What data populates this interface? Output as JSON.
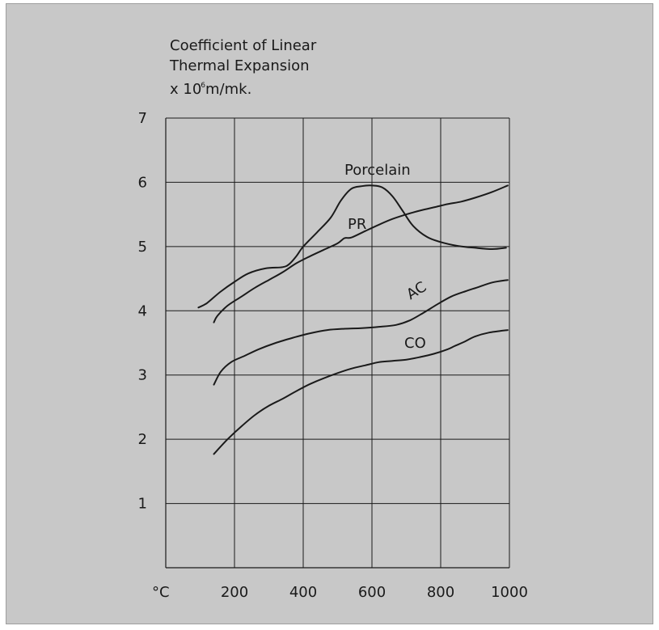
{
  "chart_data": {
    "type": "line",
    "title": "",
    "ylabel_lines": [
      "Coefficient of Linear",
      "Thermal Expansion"
    ],
    "ylabel_unit_prefix": "x 10",
    "ylabel_unit_exp": "6",
    "ylabel_unit_suffix": "m/mk.",
    "xlabel": "°C",
    "xlim": [
      0,
      1000
    ],
    "ylim": [
      0,
      7
    ],
    "x_ticks": [
      200,
      400,
      600,
      800,
      1000
    ],
    "y_ticks": [
      1,
      2,
      3,
      4,
      5,
      6,
      7
    ],
    "grid": true,
    "series": [
      {
        "name": "Porcelain",
        "x": [
          95,
          120,
          160,
          200,
          240,
          290,
          340,
          360,
          380,
          400,
          440,
          480,
          510,
          540,
          570,
          600,
          630,
          660,
          690,
          720,
          760,
          800,
          850,
          900,
          950,
          990
        ],
        "y": [
          4.05,
          4.12,
          4.3,
          4.45,
          4.58,
          4.66,
          4.68,
          4.73,
          4.85,
          5.0,
          5.22,
          5.45,
          5.72,
          5.9,
          5.94,
          5.95,
          5.92,
          5.78,
          5.55,
          5.32,
          5.15,
          5.07,
          5.01,
          4.98,
          4.96,
          4.98
        ]
      },
      {
        "name": "PR",
        "x": [
          140,
          150,
          180,
          220,
          260,
          300,
          340,
          380,
          420,
          460,
          500,
          520,
          540,
          580,
          620,
          660,
          700,
          740,
          780,
          820,
          860,
          900,
          950,
          995
        ],
        "y": [
          3.82,
          3.92,
          4.08,
          4.22,
          4.36,
          4.48,
          4.6,
          4.74,
          4.85,
          4.95,
          5.05,
          5.13,
          5.14,
          5.24,
          5.34,
          5.43,
          5.5,
          5.56,
          5.61,
          5.66,
          5.7,
          5.76,
          5.85,
          5.95
        ]
      },
      {
        "name": "AC",
        "x": [
          140,
          160,
          190,
          230,
          270,
          320,
          370,
          420,
          470,
          520,
          570,
          620,
          670,
          710,
          750,
          790,
          830,
          870,
          910,
          950,
          995
        ],
        "y": [
          2.85,
          3.05,
          3.2,
          3.3,
          3.4,
          3.5,
          3.58,
          3.65,
          3.7,
          3.72,
          3.73,
          3.75,
          3.78,
          3.85,
          3.97,
          4.1,
          4.22,
          4.3,
          4.37,
          4.44,
          4.48
        ]
      },
      {
        "name": "CO",
        "x": [
          140,
          180,
          220,
          260,
          300,
          340,
          380,
          420,
          460,
          500,
          540,
          580,
          620,
          660,
          700,
          740,
          780,
          820,
          840,
          870,
          900,
          940,
          995
        ],
        "y": [
          1.77,
          2.0,
          2.2,
          2.38,
          2.52,
          2.63,
          2.75,
          2.86,
          2.95,
          3.03,
          3.1,
          3.15,
          3.2,
          3.22,
          3.24,
          3.28,
          3.33,
          3.4,
          3.45,
          3.52,
          3.6,
          3.66,
          3.7
        ]
      }
    ],
    "annotations": [
      "Porcelain",
      "PR",
      "AC",
      "CO"
    ]
  },
  "colors": {
    "panel_background": "#c8c8c8",
    "lines": "#1a1a1a",
    "grid": "#1a1a1a"
  }
}
